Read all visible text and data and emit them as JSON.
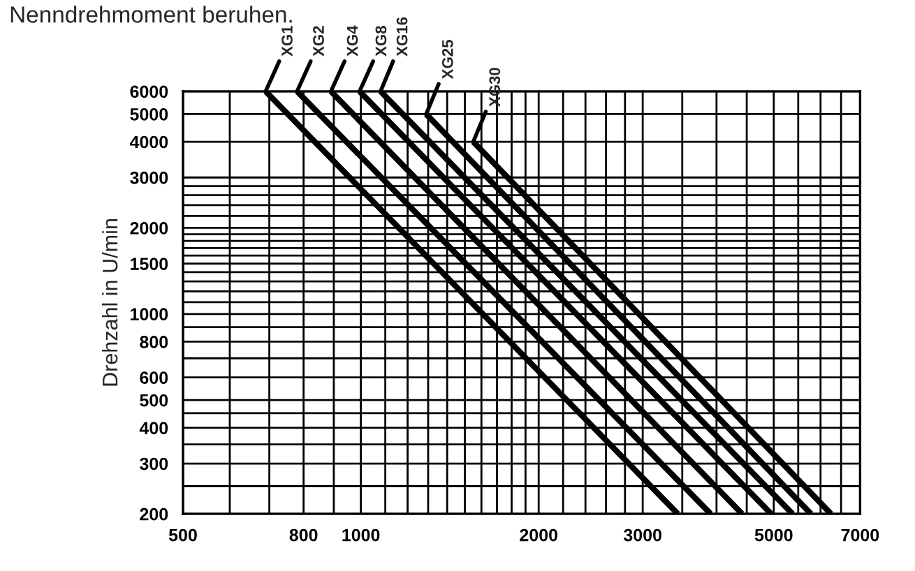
{
  "chart_data": {
    "type": "line",
    "ylabel": "Drehzahl in U/min",
    "annotations": [
      "Nenndrehmoment beruhen."
    ],
    "log": "xy",
    "grid": true,
    "legend": false,
    "marker": "none",
    "line_style": "solid",
    "xlim": [
      500,
      7000
    ],
    "xticks": [
      500,
      {
        "value": 600,
        "label": null
      },
      {
        "value": 700,
        "label": null
      },
      800,
      {
        "value": 900,
        "label": null
      },
      1000,
      {
        "value": 1100,
        "label": null
      },
      {
        "value": 1200,
        "label": null
      },
      {
        "value": 1300,
        "label": null
      },
      {
        "value": 1400,
        "label": null
      },
      {
        "value": 1500,
        "label": null
      },
      {
        "value": 1600,
        "label": null
      },
      {
        "value": 1700,
        "label": null
      },
      {
        "value": 1800,
        "label": null
      },
      {
        "value": 1900,
        "label": null
      },
      2000,
      {
        "value": 2200,
        "label": null
      },
      {
        "value": 2400,
        "label": null
      },
      {
        "value": 2600,
        "label": null
      },
      {
        "value": 2800,
        "label": null
      },
      3000,
      {
        "value": 3500,
        "label": null
      },
      {
        "value": 4000,
        "label": null
      },
      {
        "value": 4500,
        "label": null
      },
      5000,
      {
        "value": 5500,
        "label": null
      },
      {
        "value": 6000,
        "label": null
      },
      {
        "value": 6500,
        "label": null
      },
      7000
    ],
    "ylim": [
      200,
      6000
    ],
    "yticks": [
      200,
      {
        "value": 250,
        "label": null
      },
      300,
      {
        "value": 350,
        "label": null
      },
      400,
      {
        "value": 450,
        "label": null
      },
      500,
      600,
      {
        "value": 700,
        "label": null
      },
      800,
      {
        "value": 900,
        "label": null
      },
      1000,
      {
        "value": 1100,
        "label": null
      },
      {
        "value": 1200,
        "label": null
      },
      {
        "value": 1300,
        "label": null
      },
      {
        "value": 1400,
        "label": null
      },
      1500,
      {
        "value": 1600,
        "label": null
      },
      {
        "value": 1700,
        "label": null
      },
      {
        "value": 1800,
        "label": null
      },
      {
        "value": 1900,
        "label": null
      },
      2000,
      {
        "value": 2200,
        "label": null
      },
      {
        "value": 2400,
        "label": null
      },
      {
        "value": 2600,
        "label": null
      },
      {
        "value": 2800,
        "label": null
      },
      3000,
      4000,
      5000,
      6000
    ],
    "series": [
      {
        "name": "XG1",
        "color": "#000000",
        "x": [
          690,
          3440
        ],
        "values": [
          6000,
          200
        ]
      },
      {
        "name": "XG2",
        "color": "#000000",
        "x": [
          780,
          3910
        ],
        "values": [
          6000,
          200
        ]
      },
      {
        "name": "XG4",
        "color": "#000000",
        "x": [
          890,
          4420
        ],
        "values": [
          6000,
          200
        ]
      },
      {
        "name": "XG8",
        "color": "#000000",
        "x": [
          995,
          4950
        ],
        "values": [
          6000,
          200
        ]
      },
      {
        "name": "XG16",
        "color": "#000000",
        "x": [
          1080,
          5380
        ],
        "values": [
          6000,
          200
        ]
      },
      {
        "name": "XG25",
        "color": "#000000",
        "x": [
          1290,
          5780
        ],
        "values": [
          5000,
          200
        ]
      },
      {
        "name": "XG30",
        "color": "#000000",
        "x": [
          1550,
          6250
        ],
        "values": [
          4000,
          200
        ]
      }
    ]
  }
}
